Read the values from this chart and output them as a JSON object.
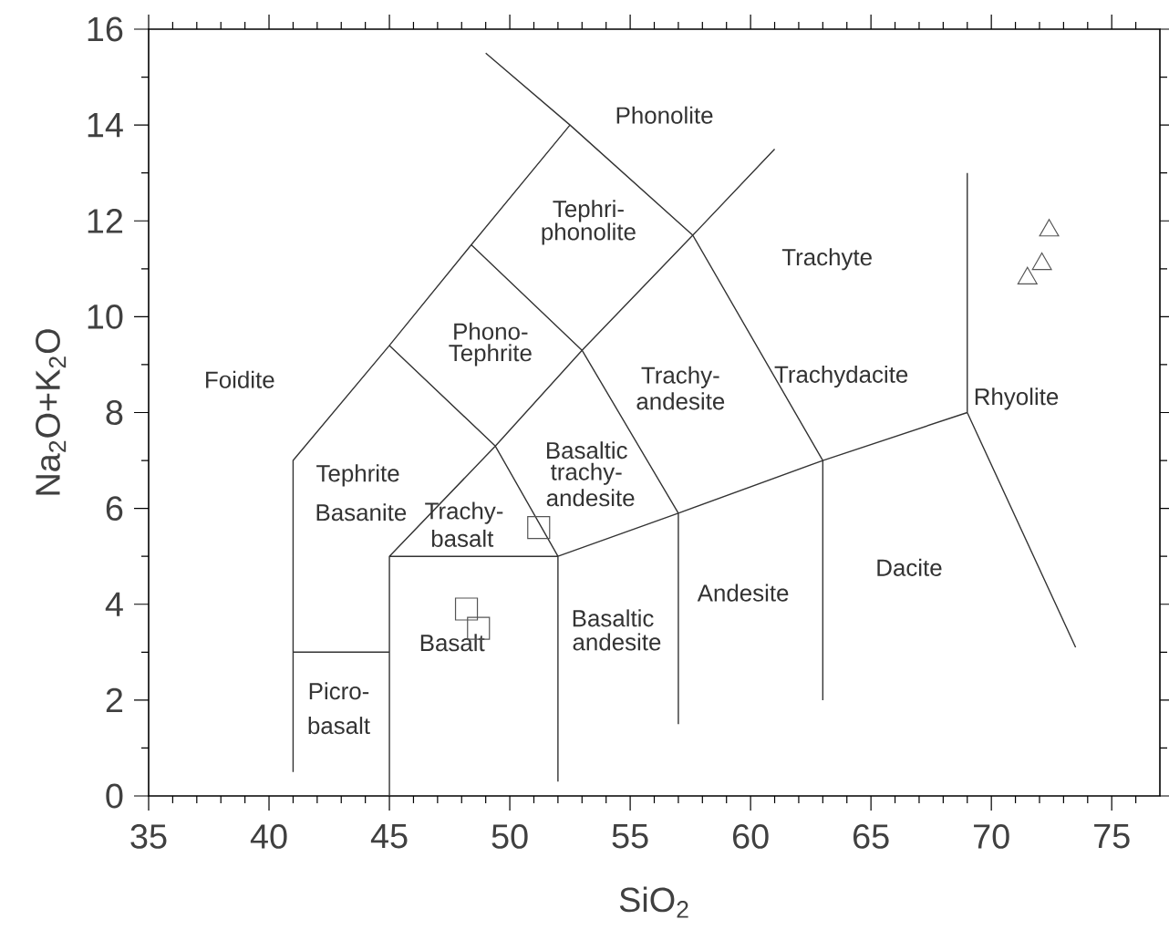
{
  "chart_data": {
    "type": "scatter",
    "xlabel": "SiO$_{2}$",
    "ylabel": "Na$_{2}$O+K$_{2}$O",
    "xlim": [
      35,
      77
    ],
    "ylim": [
      0,
      16
    ],
    "xticks": [
      35,
      {
        "value": 36,
        "label": null
      },
      {
        "value": 37,
        "label": null
      },
      {
        "value": 38,
        "label": null
      },
      {
        "value": 39,
        "label": null
      },
      40,
      {
        "value": 41,
        "label": null
      },
      {
        "value": 42,
        "label": null
      },
      {
        "value": 43,
        "label": null
      },
      {
        "value": 44,
        "label": null
      },
      45,
      {
        "value": 46,
        "label": null
      },
      {
        "value": 47,
        "label": null
      },
      {
        "value": 48,
        "label": null
      },
      {
        "value": 49,
        "label": null
      },
      50,
      {
        "value": 51,
        "label": null
      },
      {
        "value": 52,
        "label": null
      },
      {
        "value": 53,
        "label": null
      },
      {
        "value": 54,
        "label": null
      },
      55,
      {
        "value": 56,
        "label": null
      },
      {
        "value": 57,
        "label": null
      },
      {
        "value": 58,
        "label": null
      },
      {
        "value": 59,
        "label": null
      },
      60,
      {
        "value": 61,
        "label": null
      },
      {
        "value": 62,
        "label": null
      },
      {
        "value": 63,
        "label": null
      },
      {
        "value": 64,
        "label": null
      },
      65,
      {
        "value": 66,
        "label": null
      },
      {
        "value": 67,
        "label": null
      },
      {
        "value": 68,
        "label": null
      },
      {
        "value": 69,
        "label": null
      },
      70,
      {
        "value": 71,
        "label": null
      },
      {
        "value": 72,
        "label": null
      },
      {
        "value": 73,
        "label": null
      },
      {
        "value": 74,
        "label": null
      },
      75,
      {
        "value": 76,
        "label": null
      }
    ],
    "yticks": [
      0,
      {
        "value": 1,
        "label": null
      },
      2,
      {
        "value": 3,
        "label": null
      },
      4,
      {
        "value": 5,
        "label": null
      },
      6,
      {
        "value": 7,
        "label": null
      },
      8,
      {
        "value": 9,
        "label": null
      },
      10,
      {
        "value": 11,
        "label": null
      },
      12,
      {
        "value": 13,
        "label": null
      },
      14,
      {
        "value": 15,
        "label": null
      },
      16
    ],
    "series": [
      {
        "marker": "square",
        "color": "#555555",
        "x": [
          51.2,
          48.2,
          48.7
        ],
        "values": [
          5.6,
          3.9,
          3.5
        ]
      },
      {
        "marker": "triangle",
        "color": "#555555",
        "x": [
          72.4,
          72.1,
          71.5
        ],
        "values": [
          11.8,
          11.1,
          10.8
        ]
      },
      {
        "type": "line",
        "color": "#333333",
        "x": [
          41,
          41,
          45,
          48.4,
          52.5,
          49.0,
          null,
          52.5,
          57.6,
          null,
          41,
          45,
          null,
          45,
          45,
          52,
          52,
          null,
          45,
          49.4,
          53,
          57.6,
          61,
          null,
          45,
          49.4,
          52,
          null,
          48.4,
          53,
          57,
          null,
          52,
          57,
          63,
          69,
          null,
          57,
          57,
          null,
          57.6,
          63,
          63,
          null,
          69,
          69,
          null,
          69,
          73.5
        ],
        "values": [
          0.5,
          7,
          9.4,
          11.5,
          14,
          15.5,
          null,
          14,
          11.7,
          null,
          3,
          3,
          null,
          0,
          5,
          5,
          0.3,
          null,
          5,
          7.3,
          9.3,
          11.7,
          13.5,
          null,
          9.4,
          7.3,
          5,
          null,
          11.5,
          9.3,
          5.9,
          null,
          5,
          5.9,
          7,
          8,
          null,
          5.9,
          1.5,
          null,
          11.7,
          7,
          2,
          null,
          8,
          13,
          null,
          8,
          3.1
        ]
      }
    ],
    "annotations": [
      "Phonolite",
      "Tephri-",
      "phonolite",
      "Trachyte",
      "Phono-",
      "Tephrite",
      "Foidite",
      "Trachy-",
      "andesite",
      "Trachydacite",
      "Rhyolite",
      "Basaltic",
      "trachy-",
      "andesite",
      "Tephrite",
      "Basanite",
      "Trachy-",
      "basalt",
      "Dacite",
      "Andesite",
      "Basaltic",
      "andesite",
      "Basalt",
      "Picro-",
      "basalt"
    ]
  }
}
